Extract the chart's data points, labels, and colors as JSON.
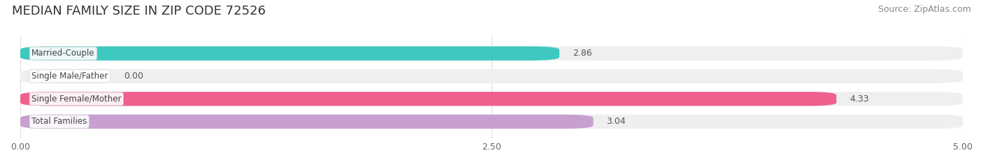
{
  "title": "MEDIAN FAMILY SIZE IN ZIP CODE 72526",
  "source": "Source: ZipAtlas.com",
  "categories": [
    "Married-Couple",
    "Single Male/Father",
    "Single Female/Mother",
    "Total Families"
  ],
  "values": [
    2.86,
    0.0,
    4.33,
    3.04
  ],
  "bar_colors": [
    "#3ec8c0",
    "#aabce8",
    "#f0608c",
    "#c8a0d0"
  ],
  "bar_labels": [
    "2.86",
    "0.00",
    "4.33",
    "3.04"
  ],
  "xlim": [
    0,
    5.0
  ],
  "xticks": [
    0.0,
    2.5,
    5.0
  ],
  "xticklabels": [
    "0.00",
    "2.50",
    "5.00"
  ],
  "background_color": "#ffffff",
  "bar_bg_color": "#efefef",
  "title_fontsize": 13,
  "source_fontsize": 9,
  "label_fontsize": 9,
  "tick_fontsize": 9,
  "bar_height": 0.62,
  "label_color_outside": "#555555",
  "grid_color": "#dddddd",
  "cat_label_bg": "#ffffff",
  "cat_label_color": "#444444"
}
